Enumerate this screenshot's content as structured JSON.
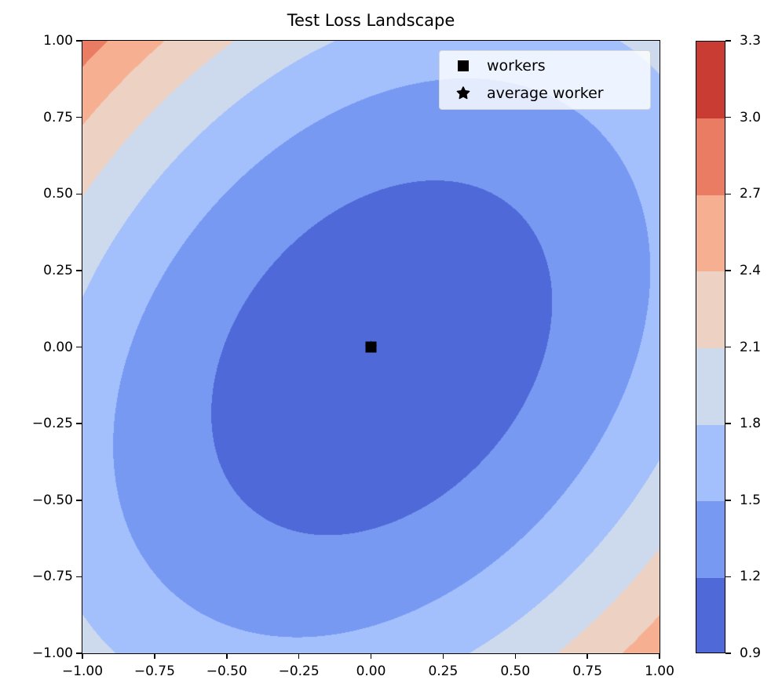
{
  "chart_data": {
    "type": "contour",
    "title": "Test Loss Landscape",
    "xlabel": "",
    "ylabel": "",
    "xlim": [
      -1.0,
      1.0
    ],
    "ylim": [
      -1.0,
      1.0
    ],
    "xticks": [
      "−1.00",
      "−0.75",
      "−0.50",
      "−0.25",
      "0.00",
      "0.25",
      "0.50",
      "0.75",
      "1.00"
    ],
    "xtick_values": [
      -1.0,
      -0.75,
      -0.5,
      -0.25,
      0.0,
      0.25,
      0.5,
      0.75,
      1.0
    ],
    "yticks": [
      "1.00",
      "0.75",
      "0.50",
      "0.25",
      "0.00",
      "−0.25",
      "−0.50",
      "−0.75",
      "−1.00"
    ],
    "ytick_values": [
      1.0,
      0.75,
      0.5,
      0.25,
      0.0,
      -0.25,
      -0.5,
      -0.75,
      -1.0
    ],
    "grid": false,
    "colormap": "coolwarm",
    "levels": [
      0.9,
      1.2,
      1.5,
      1.8,
      2.1,
      2.4,
      2.7,
      3.0,
      3.3
    ],
    "level_labels": [
      "0.9",
      "1.2",
      "1.5",
      "1.8",
      "2.1",
      "2.4",
      "2.7",
      "3.0",
      "3.3"
    ],
    "level_colors": [
      "#4f69d8",
      "#7799f2",
      "#a3c0fd",
      "#cdd9ec",
      "#edd2c4",
      "#f7af91",
      "#eb7c64",
      "#c93c34"
    ],
    "surface": {
      "min_location": [
        0.0,
        0.0
      ],
      "min_value": 1.0,
      "corner_values": {
        "top_left": 2.85,
        "top_right": 1.9,
        "bottom_left": 1.9,
        "bottom_right": 2.6
      }
    },
    "series": [
      {
        "name": "workers",
        "marker": "square",
        "color": "#000000",
        "points": [
          [
            0.0,
            0.0
          ]
        ]
      },
      {
        "name": "average worker",
        "marker": "star",
        "color": "#000000",
        "points": [
          [
            0.0,
            0.0
          ]
        ]
      }
    ],
    "legend": {
      "position": "top-right",
      "entries": [
        "workers",
        "average worker"
      ]
    },
    "colorbar": {
      "position": "right",
      "ticks": [
        "0.9",
        "1.2",
        "1.5",
        "1.8",
        "2.1",
        "2.4",
        "2.7",
        "3.0",
        "3.3"
      ]
    }
  }
}
